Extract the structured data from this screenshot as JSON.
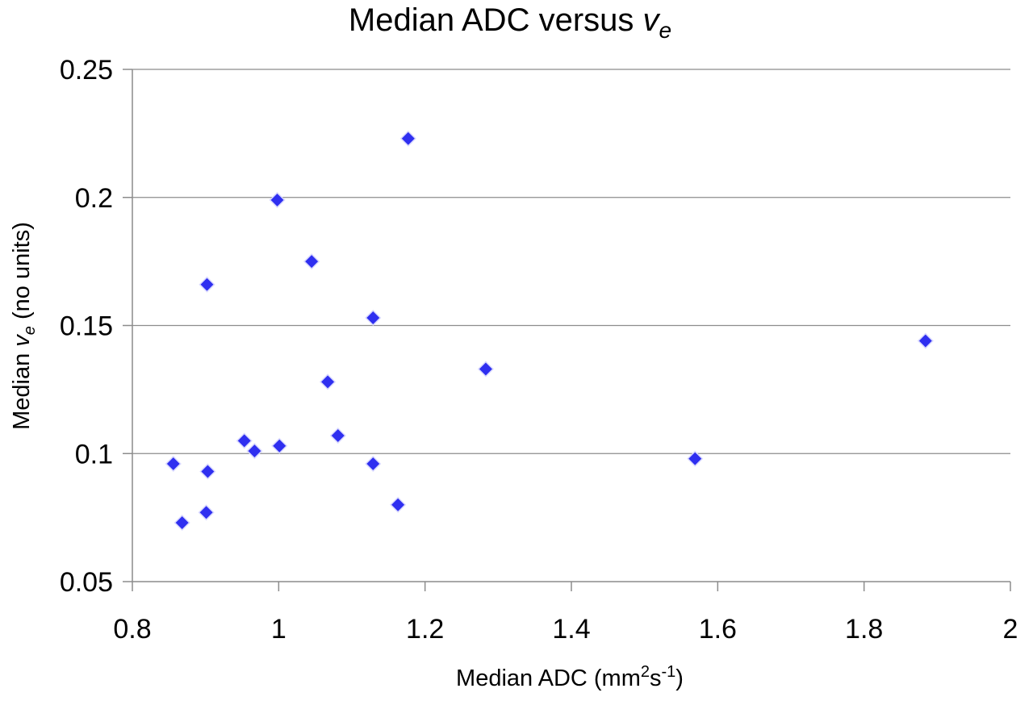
{
  "chart_data": {
    "type": "scatter",
    "title": {
      "prefix": "Median ADC versus ",
      "var": "v",
      "sub": "e"
    },
    "xlabel": {
      "prefix": "Median ADC (mm",
      "sup1": "2",
      "mid": "s",
      "sup2": "-1",
      "suffix": ")"
    },
    "ylabel": {
      "prefix": "Median ",
      "var": "v",
      "sub": "e",
      "suffix": " (no units)"
    },
    "xlim": [
      0.8,
      2
    ],
    "ylim": [
      0.05,
      0.25
    ],
    "x_ticks": [
      0.8,
      1,
      1.2,
      1.4,
      1.6,
      1.8,
      2
    ],
    "x_tick_labels": [
      "0.8",
      "1",
      "1.2",
      "1.4",
      "1.6",
      "1.8",
      "2"
    ],
    "y_ticks": [
      0.05,
      0.1,
      0.15,
      0.2,
      0.25
    ],
    "y_tick_labels": [
      "0.05",
      "0.1",
      "0.15",
      "0.2",
      "0.25"
    ],
    "grid": "horizontal",
    "marker": "diamond",
    "marker_color": "#2f2ff0",
    "marker_edge_color": "#d8d8ff",
    "series": [
      {
        "points": [
          {
            "x": 0.856,
            "y": 0.096
          },
          {
            "x": 0.868,
            "y": 0.073
          },
          {
            "x": 0.901,
            "y": 0.077
          },
          {
            "x": 0.903,
            "y": 0.093
          },
          {
            "x": 0.902,
            "y": 0.166
          },
          {
            "x": 0.953,
            "y": 0.105
          },
          {
            "x": 0.967,
            "y": 0.101
          },
          {
            "x": 0.998,
            "y": 0.199
          },
          {
            "x": 1.001,
            "y": 0.103
          },
          {
            "x": 1.045,
            "y": 0.175
          },
          {
            "x": 1.067,
            "y": 0.128
          },
          {
            "x": 1.081,
            "y": 0.107
          },
          {
            "x": 1.129,
            "y": 0.153
          },
          {
            "x": 1.129,
            "y": 0.096
          },
          {
            "x": 1.163,
            "y": 0.08
          },
          {
            "x": 1.177,
            "y": 0.223
          },
          {
            "x": 1.283,
            "y": 0.133
          },
          {
            "x": 1.569,
            "y": 0.098
          },
          {
            "x": 1.884,
            "y": 0.144
          }
        ]
      }
    ]
  }
}
